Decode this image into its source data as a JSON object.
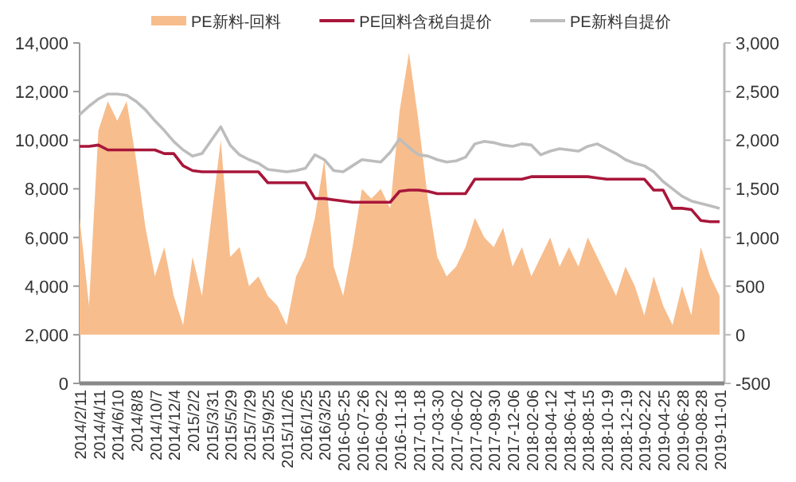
{
  "chart_data": {
    "type": "line",
    "legend": "top",
    "grid": false,
    "categories": [
      "2014/2/11",
      null,
      "2014/4/11",
      null,
      "2014/6/10",
      null,
      "2014/8/8",
      null,
      "2014/10/7",
      null,
      "2014/12/4",
      null,
      "2015/2/2",
      null,
      "2015/3/31",
      null,
      "2015/5/29",
      null,
      "2015/7/29",
      null,
      "2015/9/25",
      null,
      "2015/11/26",
      null,
      "2016/1/25",
      null,
      "2016/3/25",
      null,
      "2016-05-25",
      null,
      "2016-07-26",
      null,
      "2016-09-22",
      null,
      "2016-11-18",
      null,
      "2017-01-18",
      null,
      "2017-03-30",
      null,
      "2017-06-02",
      null,
      "2017-08-02",
      null,
      "2017-09-30",
      null,
      "2017-12-06",
      null,
      "2018-02-06",
      null,
      "2018-04-12",
      null,
      "2018-06-14",
      null,
      "2018-08-15",
      null,
      "2018-10-19",
      null,
      "2018-12-19",
      null,
      "2019-02-22",
      null,
      "2019-04-25",
      null,
      "2019-06-28",
      null,
      "2019-08-28",
      null,
      "2019-11-01"
    ],
    "ylim": [
      0,
      14000
    ],
    "yticks": [
      {
        "value": 0,
        "label": "0"
      },
      {
        "value": 2000,
        "label": "2,000"
      },
      {
        "value": 4000,
        "label": "4,000"
      },
      {
        "value": 6000,
        "label": "6,000"
      },
      {
        "value": 8000,
        "label": "8,000"
      },
      {
        "value": 10000,
        "label": "10,000"
      },
      {
        "value": 12000,
        "label": "12,000"
      },
      {
        "value": 14000,
        "label": "14,000"
      }
    ],
    "y2lim": [
      -500,
      3000
    ],
    "y2ticks": [
      {
        "value": -500,
        "label": "-500"
      },
      {
        "value": 0,
        "label": "0"
      },
      {
        "value": 500,
        "label": "500"
      },
      {
        "value": 1000,
        "label": "1,000"
      },
      {
        "value": 1500,
        "label": "1,500"
      },
      {
        "value": 2000,
        "label": "2,000"
      },
      {
        "value": 2500,
        "label": "2,500"
      },
      {
        "value": 3000,
        "label": "3,000"
      }
    ],
    "series": [
      {
        "name": "PE新料-回料",
        "type": "area",
        "axis": "y2",
        "color": "#f8bd8c",
        "values": [
          1200,
          300,
          2100,
          2400,
          2200,
          2400,
          1800,
          1100,
          600,
          900,
          400,
          100,
          800,
          400,
          1200,
          2000,
          800,
          900,
          500,
          600,
          400,
          300,
          100,
          600,
          800,
          1200,
          1800,
          700,
          400,
          900,
          1500,
          1400,
          1500,
          1300,
          2300,
          2900,
          2200,
          1400,
          800,
          600,
          700,
          900,
          1200,
          1000,
          900,
          1100,
          700,
          900,
          600,
          800,
          1000,
          700,
          900,
          700,
          1000,
          800,
          600,
          400,
          700,
          500,
          200,
          600,
          300,
          100,
          500,
          200,
          900,
          600,
          400
        ]
      },
      {
        "name": "PE回料含税自提价",
        "axis": "y",
        "color": "#a8163a",
        "values": [
          9750,
          9750,
          9800,
          9600,
          9600,
          9600,
          9600,
          9600,
          9600,
          9450,
          9450,
          8950,
          8750,
          8700,
          8700,
          8700,
          8700,
          8700,
          8700,
          8700,
          8250,
          8250,
          8250,
          8250,
          8250,
          7600,
          7600,
          7550,
          7500,
          7450,
          7450,
          7450,
          7450,
          7450,
          7900,
          7950,
          7950,
          7900,
          7800,
          7800,
          7800,
          7800,
          8400,
          8400,
          8400,
          8400,
          8400,
          8400,
          8500,
          8500,
          8500,
          8500,
          8500,
          8500,
          8500,
          8450,
          8400,
          8400,
          8400,
          8400,
          8400,
          7950,
          7950,
          7200,
          7200,
          7150,
          6700,
          6650,
          6650
        ]
      },
      {
        "name": "PE新料自提价",
        "axis": "y",
        "color": "#bdbdbd",
        "values": [
          11050,
          11400,
          11700,
          11900,
          11900,
          11850,
          11600,
          11250,
          10800,
          10400,
          9950,
          9600,
          9350,
          9450,
          10000,
          10550,
          9800,
          9400,
          9200,
          9050,
          8800,
          8750,
          8700,
          8750,
          8850,
          9400,
          9200,
          8750,
          8700,
          8950,
          9200,
          9150,
          9100,
          9500,
          10050,
          9700,
          9400,
          9350,
          9200,
          9100,
          9150,
          9300,
          9850,
          9950,
          9900,
          9800,
          9750,
          9850,
          9800,
          9400,
          9550,
          9650,
          9600,
          9550,
          9750,
          9850,
          9650,
          9450,
          9200,
          9050,
          8950,
          8700,
          8300,
          8000,
          7700,
          7500,
          7400,
          7300,
          7200
        ]
      }
    ]
  }
}
